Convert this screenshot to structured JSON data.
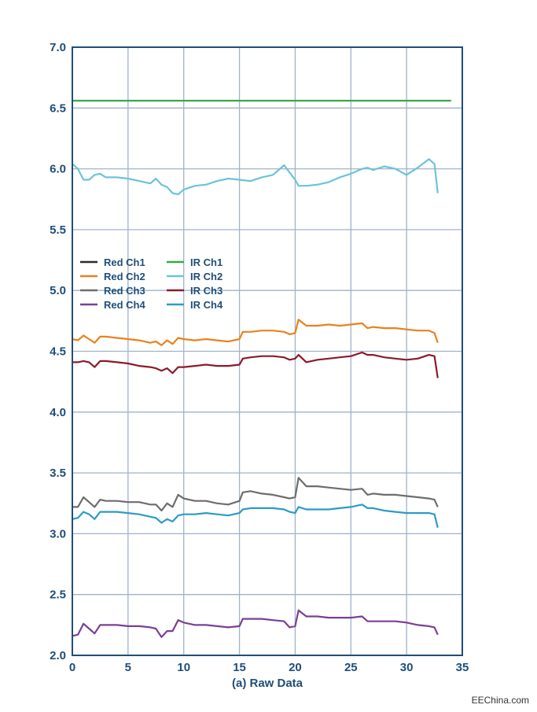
{
  "chart_data": {
    "type": "line",
    "title": "",
    "xlabel": "(a) Raw Data",
    "ylabel": "",
    "xlim": [
      0,
      35
    ],
    "ylim": [
      2.0,
      7.0
    ],
    "xticks": [
      "0",
      "5",
      "10",
      "15",
      "20",
      "25",
      "30",
      "35"
    ],
    "yticks": [
      "2.0",
      "2.5",
      "3.0",
      "3.5",
      "4.0",
      "4.5",
      "5.0",
      "5.5",
      "6.0",
      "6.5",
      "7.0"
    ],
    "grid": true,
    "legend_position": "middle-left",
    "series": [
      {
        "name": "Red Ch1",
        "color": "#2b2b2b",
        "points": []
      },
      {
        "name": "Red Ch2",
        "color": "#e8821e",
        "points": [
          [
            0,
            4.6
          ],
          [
            0.5,
            4.59
          ],
          [
            1,
            4.63
          ],
          [
            1.5,
            4.6
          ],
          [
            2,
            4.57
          ],
          [
            2.5,
            4.62
          ],
          [
            3,
            4.62
          ],
          [
            4,
            4.61
          ],
          [
            5,
            4.6
          ],
          [
            6,
            4.59
          ],
          [
            7,
            4.57
          ],
          [
            7.5,
            4.58
          ],
          [
            8,
            4.55
          ],
          [
            8.5,
            4.59
          ],
          [
            9,
            4.56
          ],
          [
            9.5,
            4.61
          ],
          [
            10,
            4.6
          ],
          [
            11,
            4.59
          ],
          [
            12,
            4.6
          ],
          [
            13,
            4.59
          ],
          [
            14,
            4.58
          ],
          [
            15,
            4.6
          ],
          [
            15.3,
            4.66
          ],
          [
            16,
            4.66
          ],
          [
            17,
            4.67
          ],
          [
            18,
            4.67
          ],
          [
            19,
            4.66
          ],
          [
            19.5,
            4.64
          ],
          [
            20,
            4.65
          ],
          [
            20.3,
            4.76
          ],
          [
            21,
            4.71
          ],
          [
            22,
            4.71
          ],
          [
            23,
            4.72
          ],
          [
            24,
            4.71
          ],
          [
            25,
            4.72
          ],
          [
            26,
            4.73
          ],
          [
            26.5,
            4.69
          ],
          [
            27,
            4.7
          ],
          [
            28,
            4.69
          ],
          [
            29,
            4.69
          ],
          [
            30,
            4.68
          ],
          [
            31,
            4.67
          ],
          [
            32,
            4.67
          ],
          [
            32.5,
            4.65
          ],
          [
            32.8,
            4.57
          ]
        ]
      },
      {
        "name": "Red Ch3",
        "color": "#6d6d6d",
        "points": [
          [
            0,
            3.22
          ],
          [
            0.5,
            3.22
          ],
          [
            1,
            3.3
          ],
          [
            1.5,
            3.26
          ],
          [
            2,
            3.22
          ],
          [
            2.5,
            3.28
          ],
          [
            3,
            3.27
          ],
          [
            4,
            3.27
          ],
          [
            5,
            3.26
          ],
          [
            6,
            3.26
          ],
          [
            7,
            3.24
          ],
          [
            7.5,
            3.24
          ],
          [
            8,
            3.19
          ],
          [
            8.5,
            3.25
          ],
          [
            9,
            3.22
          ],
          [
            9.5,
            3.32
          ],
          [
            10,
            3.29
          ],
          [
            11,
            3.27
          ],
          [
            12,
            3.27
          ],
          [
            13,
            3.25
          ],
          [
            14,
            3.24
          ],
          [
            15,
            3.27
          ],
          [
            15.3,
            3.34
          ],
          [
            16,
            3.35
          ],
          [
            17,
            3.33
          ],
          [
            18,
            3.32
          ],
          [
            19,
            3.3
          ],
          [
            19.5,
            3.29
          ],
          [
            20,
            3.3
          ],
          [
            20.3,
            3.46
          ],
          [
            21,
            3.39
          ],
          [
            22,
            3.39
          ],
          [
            23,
            3.38
          ],
          [
            24,
            3.37
          ],
          [
            25,
            3.36
          ],
          [
            26,
            3.37
          ],
          [
            26.5,
            3.32
          ],
          [
            27,
            3.33
          ],
          [
            28,
            3.32
          ],
          [
            29,
            3.32
          ],
          [
            30,
            3.31
          ],
          [
            31,
            3.3
          ],
          [
            32,
            3.29
          ],
          [
            32.5,
            3.28
          ],
          [
            32.8,
            3.22
          ]
        ]
      },
      {
        "name": "Red Ch4",
        "color": "#7a3f98",
        "points": [
          [
            0,
            2.16
          ],
          [
            0.5,
            2.17
          ],
          [
            1,
            2.26
          ],
          [
            1.5,
            2.22
          ],
          [
            2,
            2.18
          ],
          [
            2.5,
            2.25
          ],
          [
            3,
            2.25
          ],
          [
            4,
            2.25
          ],
          [
            5,
            2.24
          ],
          [
            6,
            2.24
          ],
          [
            7,
            2.23
          ],
          [
            7.5,
            2.22
          ],
          [
            8,
            2.15
          ],
          [
            8.5,
            2.2
          ],
          [
            9,
            2.2
          ],
          [
            9.5,
            2.29
          ],
          [
            10,
            2.27
          ],
          [
            11,
            2.25
          ],
          [
            12,
            2.25
          ],
          [
            13,
            2.24
          ],
          [
            14,
            2.23
          ],
          [
            15,
            2.24
          ],
          [
            15.3,
            2.3
          ],
          [
            16,
            2.3
          ],
          [
            17,
            2.3
          ],
          [
            18,
            2.29
          ],
          [
            19,
            2.28
          ],
          [
            19.5,
            2.23
          ],
          [
            20,
            2.24
          ],
          [
            20.3,
            2.37
          ],
          [
            21,
            2.32
          ],
          [
            22,
            2.32
          ],
          [
            23,
            2.31
          ],
          [
            24,
            2.31
          ],
          [
            25,
            2.31
          ],
          [
            26,
            2.32
          ],
          [
            26.5,
            2.28
          ],
          [
            27,
            2.28
          ],
          [
            28,
            2.28
          ],
          [
            29,
            2.28
          ],
          [
            30,
            2.27
          ],
          [
            31,
            2.25
          ],
          [
            32,
            2.24
          ],
          [
            32.5,
            2.23
          ],
          [
            32.8,
            2.17
          ]
        ]
      },
      {
        "name": "IR Ch1",
        "color": "#3aa84a",
        "points": [
          [
            0,
            6.56
          ],
          [
            34,
            6.56
          ]
        ]
      },
      {
        "name": "IR Ch2",
        "color": "#6cc3d9",
        "points": [
          [
            0,
            6.04
          ],
          [
            0.5,
            6.0
          ],
          [
            1,
            5.91
          ],
          [
            1.5,
            5.91
          ],
          [
            2,
            5.95
          ],
          [
            2.5,
            5.96
          ],
          [
            3,
            5.93
          ],
          [
            4,
            5.93
          ],
          [
            5,
            5.92
          ],
          [
            6,
            5.9
          ],
          [
            7,
            5.88
          ],
          [
            7.5,
            5.92
          ],
          [
            8,
            5.87
          ],
          [
            8.5,
            5.85
          ],
          [
            9,
            5.8
          ],
          [
            9.5,
            5.79
          ],
          [
            10,
            5.83
          ],
          [
            11,
            5.86
          ],
          [
            12,
            5.87
          ],
          [
            13,
            5.9
          ],
          [
            14,
            5.92
          ],
          [
            15,
            5.91
          ],
          [
            16,
            5.9
          ],
          [
            17,
            5.93
          ],
          [
            18,
            5.95
          ],
          [
            19,
            6.03
          ],
          [
            19.5,
            5.97
          ],
          [
            20,
            5.91
          ],
          [
            20.3,
            5.86
          ],
          [
            21,
            5.86
          ],
          [
            22,
            5.87
          ],
          [
            23,
            5.89
          ],
          [
            24,
            5.93
          ],
          [
            25,
            5.96
          ],
          [
            26,
            6.0
          ],
          [
            26.5,
            6.01
          ],
          [
            27,
            5.99
          ],
          [
            28,
            6.02
          ],
          [
            29,
            6.0
          ],
          [
            30,
            5.95
          ],
          [
            31,
            6.01
          ],
          [
            32,
            6.08
          ],
          [
            32.5,
            6.04
          ],
          [
            32.8,
            5.8
          ]
        ]
      },
      {
        "name": "IR Ch3",
        "color": "#8c1a2b",
        "points": [
          [
            0,
            4.41
          ],
          [
            0.5,
            4.41
          ],
          [
            1,
            4.42
          ],
          [
            1.5,
            4.41
          ],
          [
            2,
            4.37
          ],
          [
            2.5,
            4.42
          ],
          [
            3,
            4.42
          ],
          [
            4,
            4.41
          ],
          [
            5,
            4.4
          ],
          [
            6,
            4.38
          ],
          [
            7,
            4.37
          ],
          [
            7.5,
            4.36
          ],
          [
            8,
            4.34
          ],
          [
            8.5,
            4.36
          ],
          [
            9,
            4.32
          ],
          [
            9.5,
            4.37
          ],
          [
            10,
            4.37
          ],
          [
            11,
            4.38
          ],
          [
            12,
            4.39
          ],
          [
            13,
            4.38
          ],
          [
            14,
            4.38
          ],
          [
            15,
            4.39
          ],
          [
            15.3,
            4.44
          ],
          [
            16,
            4.45
          ],
          [
            17,
            4.46
          ],
          [
            18,
            4.46
          ],
          [
            19,
            4.45
          ],
          [
            19.5,
            4.43
          ],
          [
            20,
            4.44
          ],
          [
            20.3,
            4.47
          ],
          [
            21,
            4.41
          ],
          [
            22,
            4.43
          ],
          [
            23,
            4.44
          ],
          [
            24,
            4.45
          ],
          [
            25,
            4.46
          ],
          [
            26,
            4.49
          ],
          [
            26.5,
            4.47
          ],
          [
            27,
            4.47
          ],
          [
            28,
            4.45
          ],
          [
            29,
            4.44
          ],
          [
            30,
            4.43
          ],
          [
            31,
            4.44
          ],
          [
            32,
            4.47
          ],
          [
            32.5,
            4.46
          ],
          [
            32.8,
            4.28
          ]
        ]
      },
      {
        "name": "IR Ch4",
        "color": "#2c9cc4",
        "points": [
          [
            0,
            3.12
          ],
          [
            0.5,
            3.13
          ],
          [
            1,
            3.18
          ],
          [
            1.5,
            3.16
          ],
          [
            2,
            3.12
          ],
          [
            2.5,
            3.18
          ],
          [
            3,
            3.18
          ],
          [
            4,
            3.18
          ],
          [
            5,
            3.17
          ],
          [
            6,
            3.16
          ],
          [
            7,
            3.14
          ],
          [
            7.5,
            3.13
          ],
          [
            8,
            3.09
          ],
          [
            8.5,
            3.12
          ],
          [
            9,
            3.1
          ],
          [
            9.5,
            3.15
          ],
          [
            10,
            3.16
          ],
          [
            11,
            3.16
          ],
          [
            12,
            3.17
          ],
          [
            13,
            3.16
          ],
          [
            14,
            3.15
          ],
          [
            15,
            3.17
          ],
          [
            15.3,
            3.2
          ],
          [
            16,
            3.21
          ],
          [
            17,
            3.21
          ],
          [
            18,
            3.21
          ],
          [
            19,
            3.2
          ],
          [
            19.5,
            3.18
          ],
          [
            20,
            3.17
          ],
          [
            20.3,
            3.22
          ],
          [
            21,
            3.2
          ],
          [
            22,
            3.2
          ],
          [
            23,
            3.2
          ],
          [
            24,
            3.21
          ],
          [
            25,
            3.22
          ],
          [
            26,
            3.24
          ],
          [
            26.5,
            3.21
          ],
          [
            27,
            3.21
          ],
          [
            28,
            3.19
          ],
          [
            29,
            3.18
          ],
          [
            30,
            3.17
          ],
          [
            31,
            3.17
          ],
          [
            32,
            3.17
          ],
          [
            32.5,
            3.16
          ],
          [
            32.8,
            3.05
          ]
        ]
      }
    ]
  },
  "watermark": "EEChina.com"
}
